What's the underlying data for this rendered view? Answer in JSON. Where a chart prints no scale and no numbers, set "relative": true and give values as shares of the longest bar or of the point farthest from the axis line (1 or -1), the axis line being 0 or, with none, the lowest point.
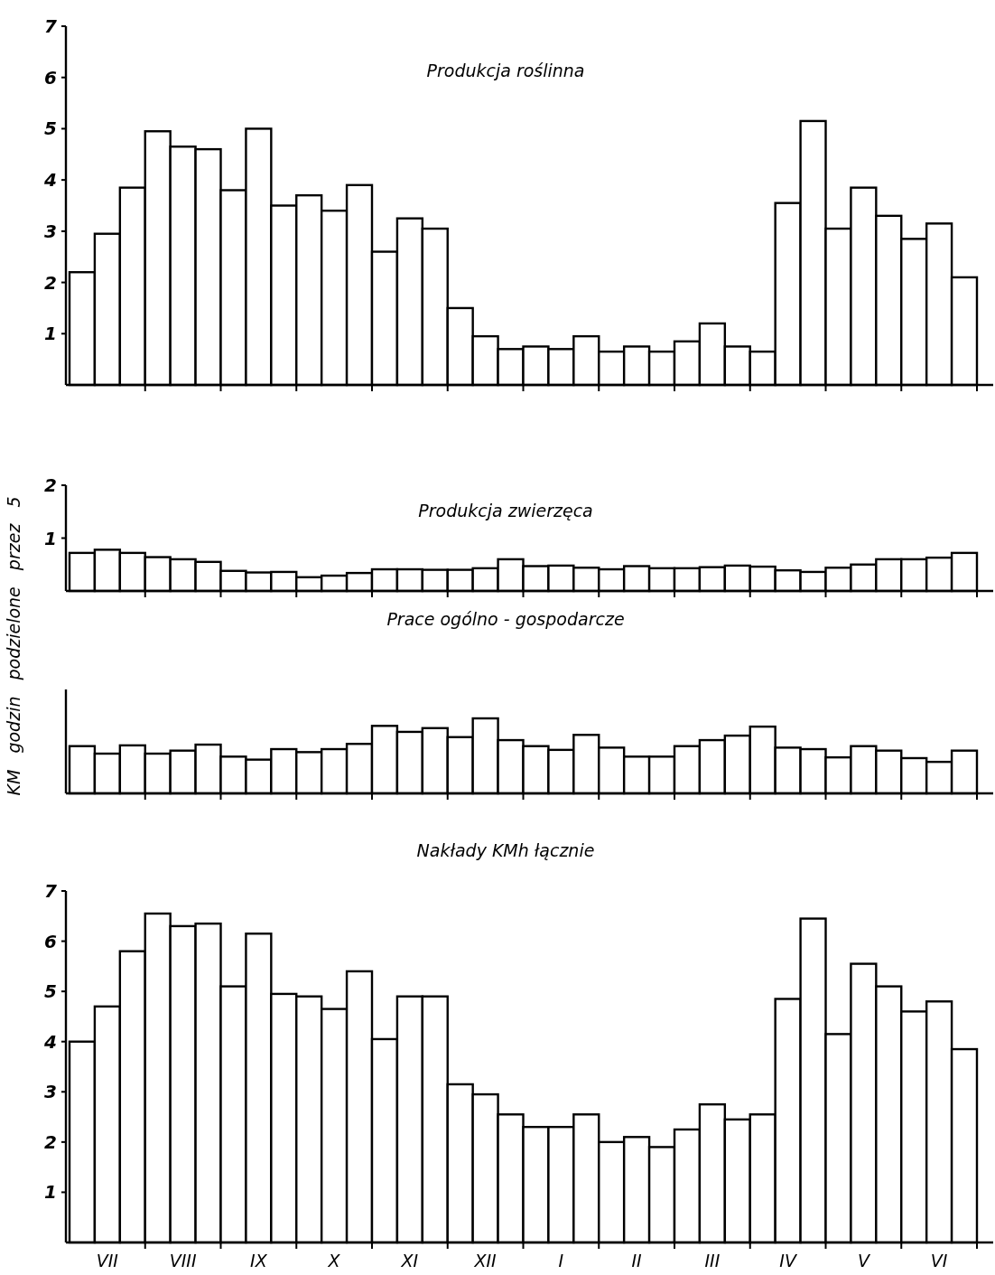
{
  "chart_data": [
    {
      "type": "bar",
      "title": "Produkcja roślinna",
      "categories": [
        null,
        null,
        null,
        null,
        null,
        null,
        null,
        null,
        null,
        null,
        null,
        null,
        null,
        null,
        null,
        null,
        null,
        null,
        null,
        null,
        null,
        null,
        null,
        null,
        null,
        null,
        null,
        null,
        null,
        null,
        null,
        null,
        null,
        null,
        null,
        null
      ],
      "color": "#ffffff",
      "values": [
        2.2,
        2.95,
        3.85,
        4.95,
        4.65,
        4.6,
        3.8,
        5.0,
        3.5,
        3.7,
        3.4,
        3.9,
        2.6,
        3.25,
        3.05,
        1.5,
        0.95,
        0.7,
        0.75,
        0.7,
        0.95,
        0.65,
        0.75,
        0.65,
        0.85,
        1.2,
        0.75,
        0.65,
        3.55,
        5.15,
        3.05,
        3.85,
        3.3,
        2.85,
        3.15,
        2.1
      ],
      "ylim": [
        0,
        7
      ],
      "yticks": [
        1,
        2,
        3,
        4,
        5,
        6,
        7
      ],
      "tick_labels": "y"
    },
    {
      "type": "bar",
      "title": "Produkcja zwierzęca",
      "categories": [
        null,
        null,
        null,
        null,
        null,
        null,
        null,
        null,
        null,
        null,
        null,
        null,
        null,
        null,
        null,
        null,
        null,
        null,
        null,
        null,
        null,
        null,
        null,
        null,
        null,
        null,
        null,
        null,
        null,
        null,
        null,
        null,
        null,
        null,
        null,
        null
      ],
      "color": "#ffffff",
      "values": [
        0.72,
        0.78,
        0.72,
        0.64,
        0.6,
        0.55,
        0.38,
        0.35,
        0.36,
        0.26,
        0.29,
        0.34,
        0.41,
        0.41,
        0.4,
        0.4,
        0.43,
        0.6,
        0.47,
        0.48,
        0.44,
        0.41,
        0.47,
        0.43,
        0.43,
        0.45,
        0.48,
        0.46,
        0.39,
        0.36,
        0.44,
        0.5,
        0.6,
        0.6,
        0.63,
        0.72
      ],
      "ylim": [
        0,
        2
      ],
      "yticks": [
        1,
        2
      ],
      "tick_labels": "y"
    },
    {
      "type": "bar",
      "title": "Prace ogólno - gospodarcze",
      "ylabel": "KM godzin podzielone przez 5",
      "categories": [
        null,
        null,
        null,
        null,
        null,
        null,
        null,
        null,
        null,
        null,
        null,
        null,
        null,
        null,
        null,
        null,
        null,
        null,
        null,
        null,
        null,
        null,
        null,
        null,
        null,
        null,
        null,
        null,
        null,
        null,
        null,
        null,
        null,
        null,
        null,
        null
      ],
      "color": "#ffffff",
      "relative": true,
      "values": [
        0.63,
        0.53,
        0.64,
        0.53,
        0.57,
        0.65,
        0.49,
        0.45,
        0.59,
        0.55,
        0.59,
        0.66,
        0.9,
        0.82,
        0.87,
        0.75,
        1,
        0.71,
        0.63,
        0.58,
        0.78,
        0.61,
        0.49,
        0.49,
        0.63,
        0.71,
        0.77,
        0.89,
        0.61,
        0.59,
        0.48,
        0.63,
        0.57,
        0.47,
        0.42,
        0.57
      ],
      "tick_labels": false
    },
    {
      "type": "bar",
      "title": "Nakłady KMh łącznie",
      "categories": [
        null,
        "VII",
        null,
        null,
        "VIII",
        null,
        null,
        "IX",
        null,
        null,
        "X",
        null,
        null,
        "XI",
        null,
        null,
        "XII",
        null,
        null,
        "I",
        null,
        null,
        "II",
        null,
        null,
        "III",
        null,
        null,
        "IV",
        null,
        null,
        "V",
        null,
        null,
        "VI",
        null
      ],
      "color": "#ffffff",
      "values": [
        4.0,
        4.7,
        5.8,
        6.55,
        6.3,
        6.35,
        5.1,
        6.15,
        4.95,
        4.9,
        4.65,
        5.4,
        4.05,
        4.9,
        4.9,
        3.15,
        2.95,
        2.55,
        2.3,
        2.3,
        2.55,
        2.0,
        2.1,
        1.9,
        2.25,
        2.75,
        2.45,
        2.55,
        4.85,
        6.45,
        4.15,
        5.55,
        5.1,
        4.6,
        4.8,
        3.85
      ],
      "ylim": [
        0,
        7
      ],
      "yticks": [
        1,
        2,
        3,
        4,
        5,
        6,
        7
      ]
    }
  ]
}
